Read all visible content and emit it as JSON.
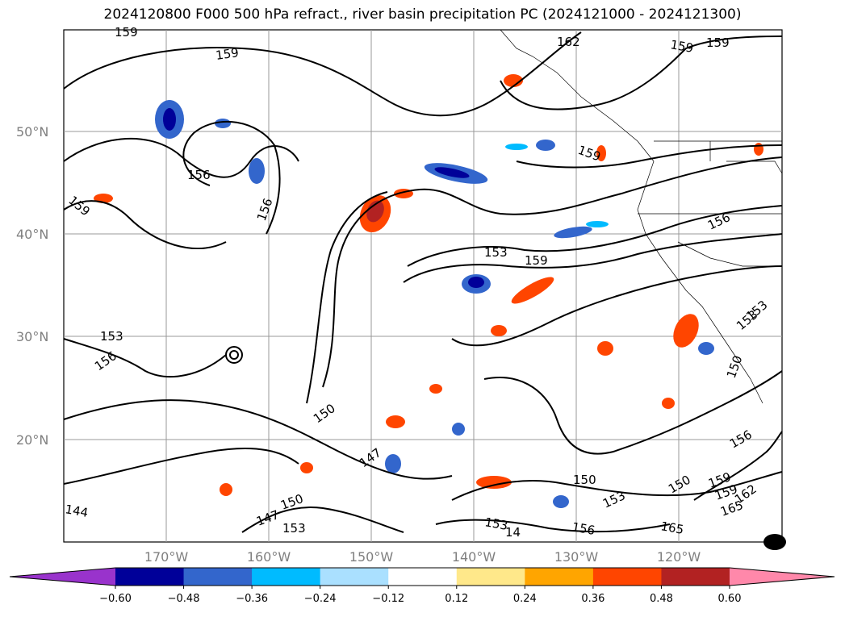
{
  "title": "2024120800 F000 500 hPa refract., river basin precipitation PC (2024121000 - 2024121300)",
  "lat_labels": [
    "50°N",
    "40°N",
    "30°N",
    "20°N"
  ],
  "lon_labels": [
    "170°W",
    "160°W",
    "150°W",
    "140°W",
    "130°W",
    "120°W"
  ],
  "colorbar": {
    "colors": [
      "#9933cc",
      "#000099",
      "#3366cc",
      "#00bbff",
      "#aae0ff",
      "#ffffff",
      "#ffe88a",
      "#ffa500",
      "#ff4500",
      "#b22222",
      "#ff88aa"
    ],
    "ticks": [
      "−0.60",
      "−0.48",
      "−0.36",
      "−0.24",
      "−0.12",
      "0.12",
      "0.24",
      "0.36",
      "0.48",
      "0.60"
    ]
  },
  "contour_labels": [
    "159",
    "159",
    "162",
    "159",
    "159",
    "156",
    "156",
    "159",
    "159",
    "156",
    "153",
    "159",
    "153",
    "153",
    "156",
    "150",
    "147",
    "150",
    "144",
    "147",
    "150",
    "153",
    "14",
    "156",
    "153",
    "150",
    "165",
    "159",
    "159",
    "162",
    "165",
    "156",
    "153",
    "150",
    "153"
  ]
}
